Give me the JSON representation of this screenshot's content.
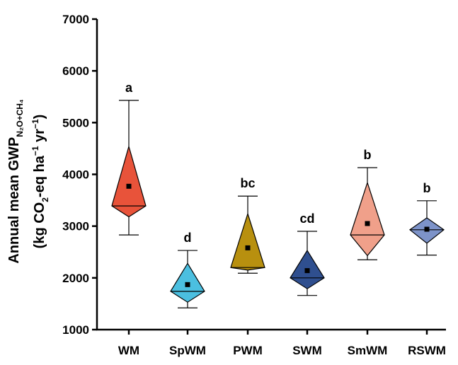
{
  "chart_data": {
    "type": "box",
    "ylabel_line1_main": "Annual mean GWP",
    "ylabel_line1_sub": "N₂O+CH₄",
    "ylabel_line2_a": "(kg CO",
    "ylabel_line2_b": "2",
    "ylabel_line2_c": "-eq ha",
    "ylabel_line2_d": "−1",
    "ylabel_line2_e": " yr",
    "ylabel_line2_f": "−1",
    "ylabel_line2_g": ")",
    "ylim": [
      1000,
      7000
    ],
    "yticks": [
      1000,
      2000,
      3000,
      4000,
      5000,
      6000,
      7000
    ],
    "ytick_labels": [
      "1000",
      "2000",
      "3000",
      "4000",
      "5000",
      "6000",
      "7000"
    ],
    "grid": false,
    "categories": [
      "WM",
      "SpWM",
      "PWM",
      "SWM",
      "SmWM",
      "RSWM"
    ],
    "groups": [
      {
        "name": "WM",
        "color": "#e8533a",
        "min": 2830,
        "q1": 3180,
        "median": 3390,
        "q3": 4540,
        "max": 5430,
        "mean": 3770,
        "letter": "a"
      },
      {
        "name": "SpWM",
        "color": "#4bbfe0",
        "min": 1420,
        "q1": 1530,
        "median": 1740,
        "q3": 2280,
        "max": 2530,
        "mean": 1870,
        "letter": "d"
      },
      {
        "name": "PWM",
        "color": "#b8900f",
        "min": 2090,
        "q1": 2150,
        "median": 2200,
        "q3": 3240,
        "max": 3580,
        "mean": 2580,
        "letter": "bc"
      },
      {
        "name": "SWM",
        "color": "#2f4f8f",
        "min": 1660,
        "q1": 1790,
        "median": 2000,
        "q3": 2530,
        "max": 2900,
        "mean": 2140,
        "letter": "cd"
      },
      {
        "name": "SmWM",
        "color": "#f0a08a",
        "min": 2350,
        "q1": 2430,
        "median": 2830,
        "q3": 3840,
        "max": 4130,
        "mean": 3050,
        "letter": "b"
      },
      {
        "name": "RSWM",
        "color": "#7d93c9",
        "min": 2440,
        "q1": 2670,
        "median": 2930,
        "q3": 3160,
        "max": 3490,
        "mean": 2940,
        "letter": "b"
      }
    ]
  }
}
